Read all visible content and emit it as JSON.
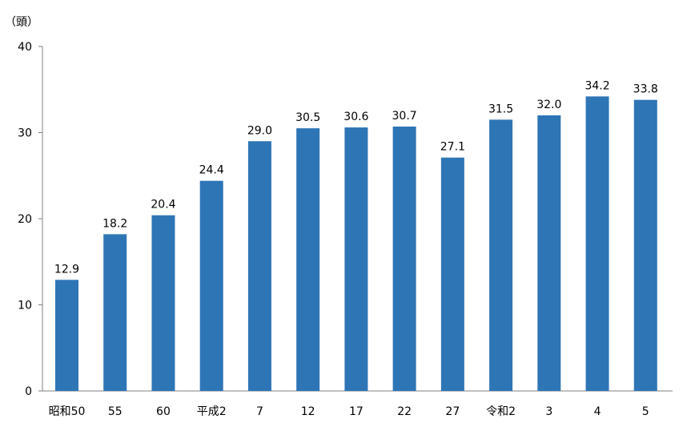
{
  "chart_data": {
    "type": "bar",
    "title": "",
    "ylabel": "（頭）",
    "xlabel": "",
    "categories": [
      "昭和50",
      "55",
      "60",
      "平成2",
      "7",
      "12",
      "17",
      "22",
      "27",
      "令和2",
      "3",
      "4",
      "5"
    ],
    "values": [
      12.9,
      18.2,
      20.4,
      24.4,
      29.0,
      30.5,
      30.6,
      30.7,
      27.1,
      31.5,
      32.0,
      34.2,
      33.8
    ],
    "value_labels": [
      "12.9",
      "18.2",
      "20.4",
      "24.4",
      "29.0",
      "30.5",
      "30.6",
      "30.7",
      "27.1",
      "31.5",
      "32.0",
      "34.2",
      "33.8"
    ],
    "yticks": [
      "0",
      "10",
      "20",
      "30",
      "40"
    ],
    "ylim": [
      0,
      40
    ],
    "grid": false,
    "legend": "none",
    "bar_color": "#2E75B6"
  }
}
